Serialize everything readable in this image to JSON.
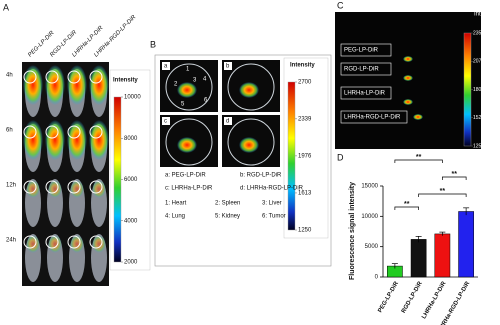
{
  "panel_a": {
    "label": "A",
    "columns": [
      "PEG-LP-DiR",
      "RGD-LP-DiR",
      "LHRHa-LP-DiR",
      "LHRHa-RGD-LP-DiR"
    ],
    "rows": [
      "4h",
      "6h",
      "12h",
      "24h"
    ],
    "colorbar": {
      "title": "Intensity",
      "ticks": [
        10000,
        8000,
        6000,
        4000,
        2000
      ]
    }
  },
  "panel_b": {
    "label": "B",
    "images": [
      "a",
      "b",
      "c",
      "d"
    ],
    "organ_numbers": [
      "1",
      "2",
      "3",
      "4",
      "5",
      "6"
    ],
    "colorbar": {
      "title": "Intensity",
      "ticks": [
        2700,
        2339,
        1976,
        1613,
        1250
      ]
    },
    "legend": [
      "a: PEG-LP-DiR",
      "b: RGD-LP-DiR",
      "c: LHRHa-LP-DiR",
      "d: LHRHa-RGD-LP-DiR",
      "1: Heart",
      "2: Spleen",
      "3: Liver",
      "4: Lung",
      "5: Kidney",
      "6: Tumor"
    ]
  },
  "panel_c": {
    "label": "C",
    "rows": [
      "PEG-LP-DiR",
      "RGD-LP-DiR",
      "LHRHa-LP-DiR",
      "LHRHa-RGD-LP-DiR"
    ],
    "colorbar": {
      "title": "Intensity",
      "ticks": [
        2350,
        2075,
        1800,
        1525,
        1250
      ]
    }
  },
  "chart_data": {
    "type": "bar",
    "panel_label": "D",
    "ylabel": "Fluorescence signal intensity",
    "categories": [
      "PEG-LP-DiR",
      "RGD-LP-DiR",
      "LHRHa-LP-DiR",
      "LHRHa-RGD-LP-DiR"
    ],
    "values": [
      1800,
      6200,
      7100,
      10800
    ],
    "errors": [
      400,
      500,
      300,
      600
    ],
    "colors": [
      "#22cc22",
      "#111111",
      "#ee1111",
      "#2222ee"
    ],
    "ylim": [
      0,
      15000
    ],
    "yticks": [
      0,
      5000,
      10000,
      15000
    ],
    "annotations": [
      "**",
      "**",
      "**",
      "**"
    ]
  }
}
